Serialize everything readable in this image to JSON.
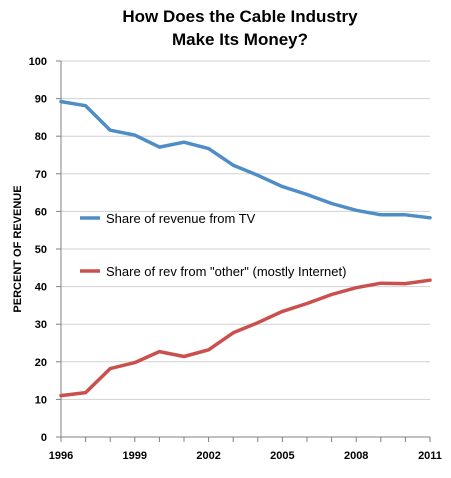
{
  "chart_data": {
    "type": "line",
    "title": [
      "How Does the Cable Industry",
      "Make Its Money?"
    ],
    "ylabel": "PERCENT OF REVENUE",
    "xlabel": "",
    "x": [
      1996,
      1997,
      1998,
      1999,
      2000,
      2001,
      2002,
      2003,
      2004,
      2005,
      2006,
      2007,
      2008,
      2009,
      2010,
      2011
    ],
    "x_tick_labels": [
      "1996",
      "1999",
      "2002",
      "2005",
      "2008",
      "2011"
    ],
    "x_ticks": [
      1996,
      1999,
      2002,
      2005,
      2008,
      2011
    ],
    "xlim": [
      1996,
      2011
    ],
    "y_tick_labels": [
      "0",
      "10",
      "20",
      "30",
      "40",
      "50",
      "60",
      "70",
      "80",
      "90",
      "100"
    ],
    "ylim": [
      0,
      100
    ],
    "grid": true,
    "series": [
      {
        "name": "Share of revenue from TV",
        "color": "#4f8dc7",
        "values": [
          89.2,
          88.1,
          81.6,
          80.3,
          77.1,
          78.4,
          76.7,
          72.3,
          69.6,
          66.6,
          64.5,
          62.1,
          60.3,
          59.1,
          59.1,
          58.3
        ]
      },
      {
        "name": "Share of rev from \"other\" (mostly Internet)",
        "color": "#c9504d",
        "values": [
          11.0,
          11.8,
          18.2,
          19.8,
          22.7,
          21.4,
          23.2,
          27.7,
          30.4,
          33.4,
          35.5,
          37.9,
          39.7,
          40.9,
          40.8,
          41.7
        ]
      }
    ],
    "legend": "inline"
  }
}
